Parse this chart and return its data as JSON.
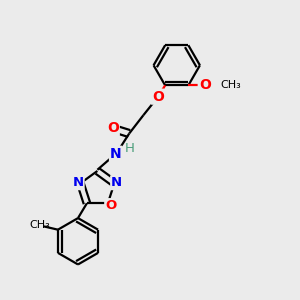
{
  "bg_color": "#ebebeb",
  "bond_color": "#000000",
  "N_color": "#0000ee",
  "O_color": "#ff0000",
  "H_color": "#4a9e7a",
  "line_width": 1.6,
  "font_size": 9.5,
  "figsize": [
    3.0,
    3.0
  ],
  "dpi": 100,
  "xlim": [
    0,
    10
  ],
  "ylim": [
    0,
    10
  ],
  "r6": 0.78,
  "r5": 0.6,
  "dbo6": 0.13,
  "dbo5": 0.11,
  "dboC": 0.12
}
